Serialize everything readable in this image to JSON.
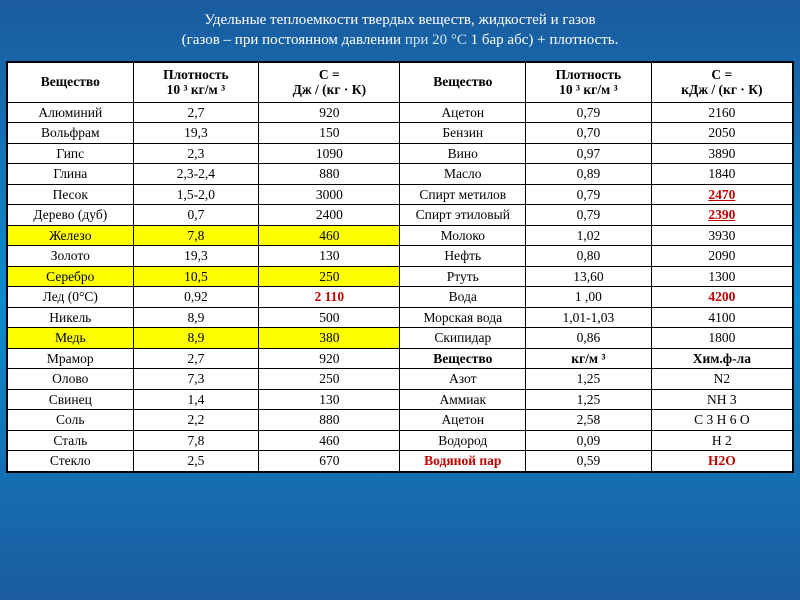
{
  "title_line1": "Удельные теплоемкости твердых веществ, жидкостей и газов",
  "title_line2a": "(газов – при постоянном давлении ",
  "title_line2b": "при 20 °С",
  "title_line2c": " 1 бар абс) + плотность.",
  "headers": {
    "h1": "Вещество",
    "h2a": "Плотность",
    "h2b": "10 ³ кг/м ³",
    "h3a": "С =",
    "h3b": "Дж / (кг · К)",
    "h4": "Вещество",
    "h5a": "Плотность",
    "h5b": "10 ³ кг/м ³",
    "h6a": "С =",
    "h6b": "кДж / (кг · К)"
  },
  "rows": [
    {
      "l": "Алюминий",
      "d": "2,7",
      "c": "920",
      "r": "Ацетон",
      "d2": "0,79",
      "c2": "2160"
    },
    {
      "l": "Вольфрам",
      "d": "19,3",
      "c": "150",
      "r": "Бензин",
      "d2": "0,70",
      "c2": "2050"
    },
    {
      "l": "Гипс",
      "d": "2,3",
      "c": "1090",
      "r": "Вино",
      "d2": "0,97",
      "c2": "3890"
    },
    {
      "l": "Глина",
      "d": "2,3-2,4",
      "c": "880",
      "r": "Масло",
      "d2": "0,89",
      "c2": "1840"
    },
    {
      "l": "Песок",
      "d": "1,5-2,0",
      "c": "3000",
      "r": "Спирт метилов",
      "d2": "0,79",
      "c2": "2470",
      "c2cls": "redu"
    },
    {
      "l": "Дерево (дуб)",
      "d": "0,7",
      "c": "2400",
      "r": "Спирт этиловый",
      "d2": "0,79",
      "c2": "2390",
      "c2cls": "redu"
    },
    {
      "l": "Железо",
      "d": "7,8",
      "c": "460",
      "r": "Молоко",
      "d2": "1,02",
      "c2": "3930",
      "lhl": true,
      "dhl": true,
      "chl": true
    },
    {
      "l": "Золото",
      "d": "19,3",
      "c": "130",
      "r": "Нефть",
      "d2": "0,80",
      "c2": "2090"
    },
    {
      "l": "Серебро",
      "d": "10,5",
      "c": "250",
      "r": "Ртуть",
      "d2": "13,60",
      "c2": "1300",
      "lhl": true,
      "dhl": true,
      "chl": true
    },
    {
      "l": "Лед (0°С)",
      "d": "0,92",
      "c": "2 110",
      "r": "Вода",
      "d2": "1 ,00",
      "c2": "4200",
      "ccls": "red",
      "c2cls": "red"
    },
    {
      "l": "Никель",
      "d": "8,9",
      "c": "500",
      "r": "Морская вода",
      "d2": "1,01-1,03",
      "c2": "4100"
    },
    {
      "l": "Медь",
      "d": "8,9",
      "c": "380",
      "r": "Скипидар",
      "d2": "0,86",
      "c2": "1800",
      "lhl": true,
      "dhl": true,
      "chl": true
    },
    {
      "l": "Мрамор",
      "d": "2,7",
      "c": "920",
      "r": "Вещество",
      "d2": "кг/м ³",
      "c2": "Хим.ф-ла",
      "rbold": true,
      "d2bold": true,
      "c2bold": true
    },
    {
      "l": "Олово",
      "d": "7,3",
      "c": "250",
      "r": "Азот",
      "d2": "1,25",
      "c2": "N2"
    },
    {
      "l": "Свинец",
      "d": "1,4",
      "c": "130",
      "r": "Аммиак",
      "d2": "1,25",
      "c2": "NH 3"
    },
    {
      "l": "Соль",
      "d": "2,2",
      "c": "880",
      "r": "Ацетон",
      "d2": "2,58",
      "c2": "С 3 Н 6 О"
    },
    {
      "l": "Сталь",
      "d": "7,8",
      "c": "460",
      "r": "Водород",
      "d2": "0,09",
      "c2": "Н 2"
    },
    {
      "l": "Стекло",
      "d": "2,5",
      "c": "670",
      "r": "Водяной пар",
      "d2": "0,59",
      "c2": "Н2О",
      "rcls": "red",
      "c2cls": "red"
    }
  ]
}
